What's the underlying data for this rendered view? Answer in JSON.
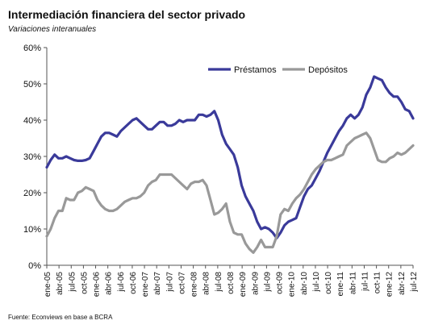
{
  "title": "Intermediación financiera del sector privado",
  "subtitle": "Variaciones interanuales",
  "source": "Fuente: Econviews en base a BCRA",
  "colors": {
    "prestamos": "#3a3a9a",
    "depositos": "#999999",
    "axis": "#555555"
  },
  "chart_data": {
    "type": "line",
    "ylim": [
      0,
      60
    ],
    "yticks": [
      "0%",
      "10%",
      "20%",
      "30%",
      "40%",
      "50%",
      "60%"
    ],
    "xtick_labels": [
      "ene-05",
      "abr-05",
      "jul-05",
      "oct-05",
      "ene-06",
      "abr-06",
      "jul-06",
      "oct-06",
      "ene-07",
      "abr-07",
      "jul-07",
      "oct-07",
      "ene-08",
      "abr-08",
      "jul-08",
      "oct-08",
      "ene-09",
      "abr-09",
      "jul-09",
      "oct-09",
      "ene-10",
      "abr-10",
      "jul-10",
      "oct-10",
      "ene-11",
      "abr-11",
      "jul-11",
      "oct-11",
      "ene-12",
      "abr-12",
      "jul-12"
    ],
    "legend_position": "top-right",
    "series": [
      {
        "name": "Préstamos",
        "values": [
          27,
          29,
          30.5,
          29.5,
          29.5,
          30,
          29.5,
          29,
          28.8,
          28.8,
          29,
          29.5,
          31.5,
          33.5,
          35.5,
          36.5,
          36.5,
          36,
          35.5,
          37,
          38,
          39,
          40,
          40.5,
          39.5,
          38.5,
          37.5,
          37.5,
          38.5,
          39.5,
          39.5,
          38.5,
          38.5,
          39,
          40,
          39.5,
          40,
          40,
          40,
          41.5,
          41.5,
          41,
          41.5,
          42.5,
          40,
          36,
          33.5,
          32,
          30.5,
          27,
          22,
          19,
          17,
          15,
          12,
          10,
          10.5,
          10,
          9,
          7.5,
          9,
          11,
          12,
          12.5,
          13,
          16,
          19,
          21,
          22,
          24,
          26,
          28.5,
          31,
          33,
          35,
          37,
          38.5,
          40.5,
          41.5,
          40.5,
          41.5,
          43.5,
          47,
          49,
          52,
          51.5,
          51,
          49,
          47.5,
          46.5,
          46.5,
          45,
          43,
          42.5,
          40.5
        ]
      },
      {
        "name": "Depósitos",
        "values": [
          8,
          10,
          13,
          15,
          15,
          18.5,
          18,
          18,
          20,
          20.5,
          21.5,
          21,
          20.5,
          18,
          16.5,
          15.5,
          15,
          15,
          15.5,
          16.5,
          17.5,
          18,
          18.5,
          18.5,
          19,
          20,
          22,
          23,
          23.5,
          25,
          25,
          25,
          25,
          24,
          23,
          22,
          21,
          22.5,
          23,
          23,
          23.5,
          22,
          18,
          14,
          14.5,
          15.5,
          17,
          12,
          9,
          8.5,
          8.5,
          6,
          4.5,
          3.5,
          5,
          7,
          5,
          5,
          5,
          8,
          14,
          15.5,
          15,
          17,
          18.5,
          19.5,
          21,
          23,
          25,
          26.5,
          27.5,
          28.5,
          29,
          29,
          29.5,
          30,
          30.5,
          33,
          34,
          35,
          35.5,
          36,
          36.5,
          35,
          32,
          29,
          28.5,
          28.5,
          29.5,
          30,
          31,
          30.5,
          31,
          32,
          33
        ]
      }
    ]
  }
}
